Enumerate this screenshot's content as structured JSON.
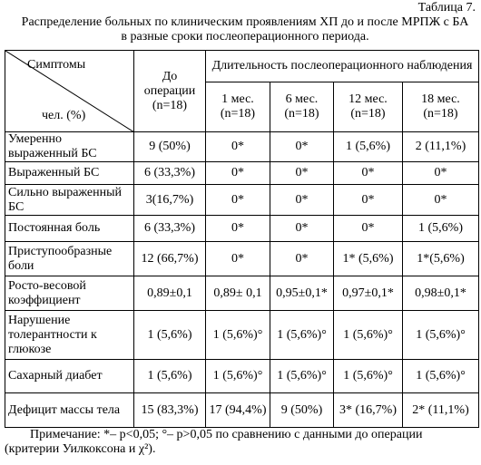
{
  "caption_label": "Таблица 7.",
  "title": "Распределение больных по клиническим проявлениям ХП до и после МРПЖ с БА в разные сроки послеоперационного периода.",
  "table": {
    "corner_top": "Симптомы",
    "corner_bottom": "чел. (%)",
    "preop": "До операции (n=18)",
    "period_group": "Длительность послеоперационного наблюдения",
    "periods": [
      "1 мес. (n=18)",
      "6 мес. (n=18)",
      "12 мес. (n=18)",
      "18 мес. (n=18)"
    ],
    "rows": [
      {
        "label": "Умеренно выраженный БС",
        "cells": [
          "9 (50%)",
          "0*",
          "0*",
          "1 (5,6%)",
          "2 (11,1%)"
        ]
      },
      {
        "label": "Выраженный БС",
        "cells": [
          "6 (33,3%)",
          "0*",
          "0*",
          "0*",
          "0*"
        ]
      },
      {
        "label": "Сильно выраженный БС",
        "cells": [
          "3(16,7%)",
          "0*",
          "0*",
          "0*",
          "0*"
        ]
      },
      {
        "label": "Постоянная боль",
        "cells": [
          "6 (33,3%)",
          "0*",
          "0*",
          "0*",
          "1 (5,6%)"
        ]
      },
      {
        "label": "Приступообразные боли",
        "cells": [
          "12 (66,7%)",
          "0*",
          "0*",
          "1* (5,6%)",
          "1*(5,6%)"
        ]
      },
      {
        "label": "Росто-весовой коэффициент",
        "cells": [
          "0,89±0,1",
          "0,89± 0,1",
          "0,95±0,1*",
          "0,97±0,1*",
          "0,98±0,1*"
        ]
      },
      {
        "label": "Нарушение толерантности к глюкозе",
        "cells": [
          "1 (5,6%)",
          "1 (5,6%)°",
          "1 (5,6%)°",
          "1 (5,6%)°",
          "1 (5,6%)°"
        ]
      },
      {
        "label": "Сахарный диабет",
        "cells": [
          "1 (5,6%)",
          "1 (5,6%)°",
          "1 (5,6%)°",
          "1 (5,6%)°",
          "1 (5,6%)°"
        ]
      },
      {
        "label": "Дефицит массы тела",
        "cells": [
          "15 (83,3%)",
          "17 (94,4%)",
          "9 (50%)",
          "3* (16,7%)",
          "2* (11,1%)"
        ]
      }
    ]
  },
  "note": "Примечание: *– p<0,05; °– p>0,05  по сравнению с данными до операции (критерии Уилкоксона и χ²)."
}
